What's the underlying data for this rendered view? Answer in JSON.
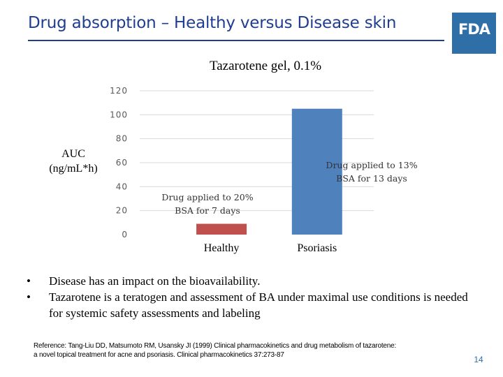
{
  "slide": {
    "title": "Drug absorption – Healthy versus Disease skin",
    "logo_text": "FDA",
    "page_number": "14"
  },
  "chart_data": {
    "type": "bar",
    "title": "Tazarotene gel, 0.1%",
    "ylabel": [
      "AUC",
      "(ng/mL*h)"
    ],
    "xlabel": "",
    "categories": [
      "Healthy",
      "Psoriasis"
    ],
    "values": [
      9,
      105
    ],
    "ylim": [
      0,
      120
    ],
    "yticks": [
      "0",
      "20",
      "40",
      "60",
      "80",
      "100",
      "120"
    ],
    "grid": true,
    "bar_colors": [
      "#c0504d",
      "#4f81bd"
    ],
    "annotations": [
      [
        "Drug applied to 20%",
        "BSA for 7 days"
      ],
      [
        "Drug applied to 13%",
        "BSA for 13 days"
      ]
    ]
  },
  "bullets": [
    {
      "marker": "•",
      "text": "Disease has an impact on the bioavailability."
    },
    {
      "marker": "•",
      "text": "Tazarotene is a teratogen and assessment of BA under maximal use conditions is needed for systemic safety assessments and labeling"
    }
  ],
  "reference": [
    "Reference: Tang-Liu DD, Matsumoto RM, Usansky JI (1999) Clinical pharmacokinetics and drug metabolism of tazarotene:",
    "a novel topical treatment for acne and psoriasis. Clinical pharmacokinetics 37:273-87"
  ],
  "colors": {
    "title": "#1f3e8f",
    "logo_background": "#2f6fa8",
    "gridline": "#d9d9d9"
  }
}
